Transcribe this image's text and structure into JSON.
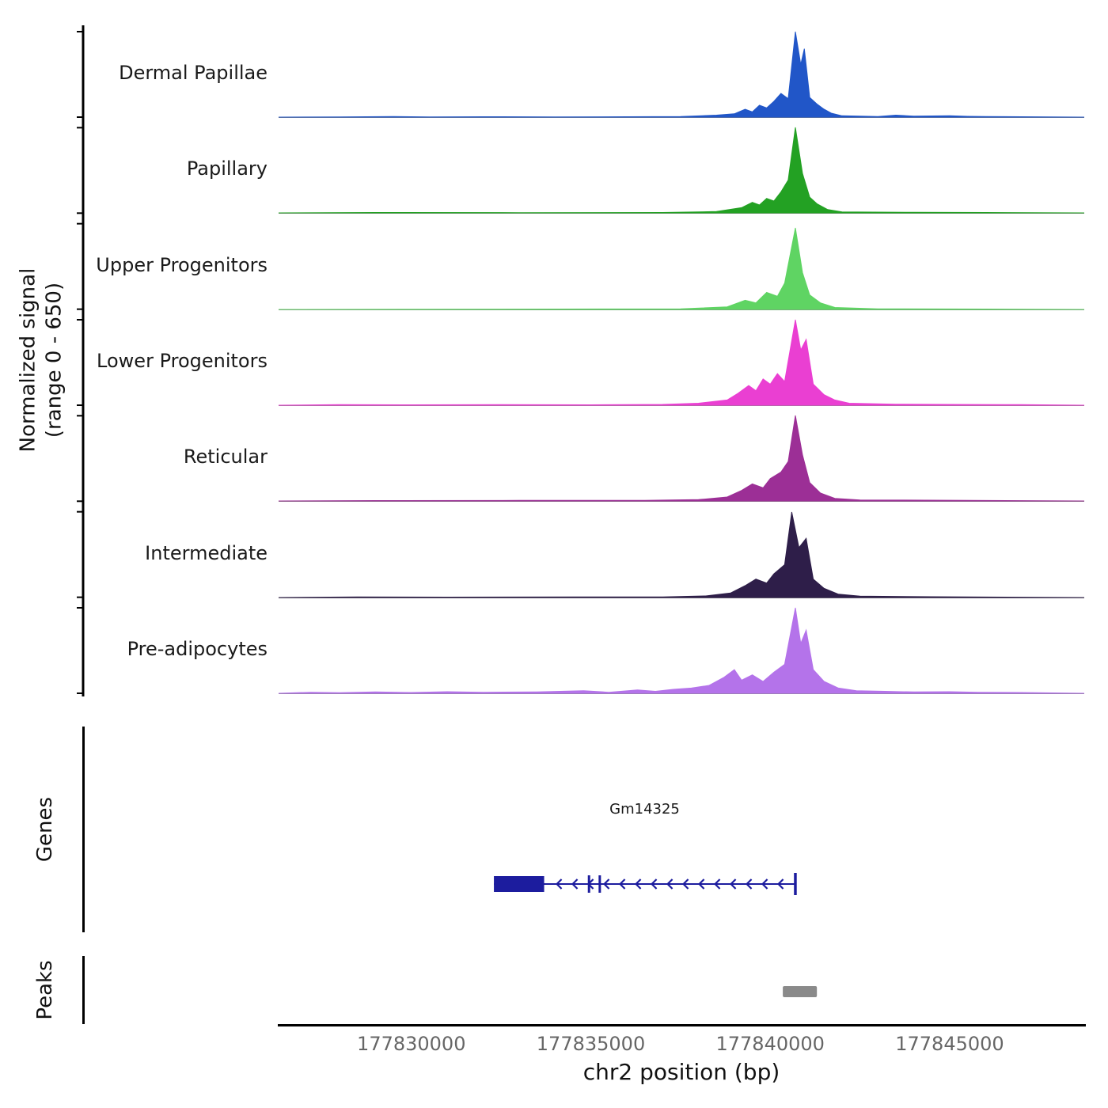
{
  "figure": {
    "ylabel_line1": "Normalized signal",
    "ylabel_line2": "(range 0 - 650)",
    "genes_section_label": "Genes",
    "peaks_section_label": "Peaks",
    "xlabel": "chr2 position (bp)"
  },
  "chart_data": {
    "type": "area",
    "subtype": "genome-browser-signal-tracks",
    "title": "",
    "xlabel": "chr2 position (bp)",
    "ylabel": "Normalized signal (range 0 - 650)",
    "x_domain": [
      177826300,
      177848750
    ],
    "y_domain": [
      0,
      650
    ],
    "x_ticks": [
      177830000,
      177835000,
      177840000,
      177845000
    ],
    "x_tick_labels": [
      "177830000",
      "177835000",
      "177840000",
      "177845000"
    ],
    "series": [
      {
        "name": "Dermal Papillae",
        "color": "#2156c8",
        "profile": [
          [
            177826300,
            0
          ],
          [
            177828000,
            2
          ],
          [
            177829500,
            4
          ],
          [
            177830500,
            2
          ],
          [
            177832000,
            3
          ],
          [
            177834000,
            2
          ],
          [
            177836000,
            3
          ],
          [
            177837500,
            5
          ],
          [
            177838500,
            15
          ],
          [
            177839000,
            25
          ],
          [
            177839300,
            60
          ],
          [
            177839500,
            40
          ],
          [
            177839700,
            90
          ],
          [
            177839900,
            70
          ],
          [
            177840100,
            120
          ],
          [
            177840300,
            180
          ],
          [
            177840500,
            140
          ],
          [
            177840700,
            650
          ],
          [
            177840850,
            400
          ],
          [
            177840950,
            520
          ],
          [
            177841100,
            150
          ],
          [
            177841300,
            100
          ],
          [
            177841500,
            60
          ],
          [
            177841700,
            30
          ],
          [
            177842000,
            10
          ],
          [
            177843000,
            5
          ],
          [
            177843500,
            15
          ],
          [
            177844000,
            8
          ],
          [
            177845000,
            10
          ],
          [
            177845500,
            6
          ],
          [
            177846000,
            4
          ],
          [
            177847000,
            3
          ],
          [
            177848750,
            0
          ]
        ]
      },
      {
        "name": "Papillary",
        "color": "#23a123",
        "profile": [
          [
            177826300,
            0
          ],
          [
            177829000,
            3
          ],
          [
            177833000,
            2
          ],
          [
            177837000,
            3
          ],
          [
            177838500,
            10
          ],
          [
            177839200,
            40
          ],
          [
            177839500,
            80
          ],
          [
            177839700,
            60
          ],
          [
            177839900,
            110
          ],
          [
            177840100,
            90
          ],
          [
            177840300,
            160
          ],
          [
            177840500,
            250
          ],
          [
            177840700,
            650
          ],
          [
            177840900,
            300
          ],
          [
            177841100,
            120
          ],
          [
            177841300,
            70
          ],
          [
            177841600,
            25
          ],
          [
            177842000,
            8
          ],
          [
            177844000,
            4
          ],
          [
            177846000,
            3
          ],
          [
            177848750,
            0
          ]
        ]
      },
      {
        "name": "Upper Progenitors",
        "color": "#5fd463",
        "profile": [
          [
            177826300,
            0
          ],
          [
            177830000,
            2
          ],
          [
            177834000,
            3
          ],
          [
            177837500,
            4
          ],
          [
            177838800,
            20
          ],
          [
            177839300,
            70
          ],
          [
            177839600,
            50
          ],
          [
            177839900,
            130
          ],
          [
            177840200,
            100
          ],
          [
            177840400,
            200
          ],
          [
            177840700,
            620
          ],
          [
            177840900,
            280
          ],
          [
            177841100,
            110
          ],
          [
            177841400,
            50
          ],
          [
            177841800,
            15
          ],
          [
            177843000,
            5
          ],
          [
            177846000,
            3
          ],
          [
            177848750,
            0
          ]
        ]
      },
      {
        "name": "Lower Progenitors",
        "color": "#ea3fd2",
        "profile": [
          [
            177826300,
            0
          ],
          [
            177828000,
            4
          ],
          [
            177830000,
            3
          ],
          [
            177832500,
            4
          ],
          [
            177835000,
            3
          ],
          [
            177837000,
            6
          ],
          [
            177838000,
            15
          ],
          [
            177838800,
            40
          ],
          [
            177839100,
            90
          ],
          [
            177839400,
            150
          ],
          [
            177839600,
            110
          ],
          [
            177839800,
            200
          ],
          [
            177840000,
            160
          ],
          [
            177840200,
            240
          ],
          [
            177840400,
            180
          ],
          [
            177840700,
            650
          ],
          [
            177840850,
            420
          ],
          [
            177841000,
            500
          ],
          [
            177841200,
            160
          ],
          [
            177841500,
            80
          ],
          [
            177841800,
            40
          ],
          [
            177842200,
            15
          ],
          [
            177843500,
            8
          ],
          [
            177845000,
            6
          ],
          [
            177847000,
            4
          ],
          [
            177848750,
            0
          ]
        ]
      },
      {
        "name": "Reticular",
        "color": "#9c2f96",
        "profile": [
          [
            177826300,
            0
          ],
          [
            177829000,
            3
          ],
          [
            177833000,
            4
          ],
          [
            177836500,
            5
          ],
          [
            177838000,
            10
          ],
          [
            177838800,
            30
          ],
          [
            177839200,
            80
          ],
          [
            177839500,
            130
          ],
          [
            177839800,
            100
          ],
          [
            177840000,
            170
          ],
          [
            177840300,
            220
          ],
          [
            177840500,
            300
          ],
          [
            177840700,
            650
          ],
          [
            177840900,
            350
          ],
          [
            177841100,
            140
          ],
          [
            177841400,
            60
          ],
          [
            177841800,
            20
          ],
          [
            177842500,
            8
          ],
          [
            177845500,
            5
          ],
          [
            177848750,
            0
          ]
        ]
      },
      {
        "name": "Intermediate",
        "color": "#2e1e49",
        "profile": [
          [
            177826300,
            0
          ],
          [
            177828500,
            4
          ],
          [
            177831000,
            3
          ],
          [
            177834500,
            4
          ],
          [
            177837000,
            5
          ],
          [
            177838200,
            12
          ],
          [
            177838900,
            35
          ],
          [
            177839300,
            90
          ],
          [
            177839600,
            140
          ],
          [
            177839900,
            110
          ],
          [
            177840100,
            180
          ],
          [
            177840400,
            250
          ],
          [
            177840600,
            650
          ],
          [
            177840800,
            380
          ],
          [
            177841000,
            450
          ],
          [
            177841200,
            140
          ],
          [
            177841500,
            70
          ],
          [
            177841900,
            25
          ],
          [
            177842500,
            10
          ],
          [
            177844500,
            6
          ],
          [
            177848750,
            0
          ]
        ]
      },
      {
        "name": "Pre-adipocytes",
        "color": "#b473ea",
        "profile": [
          [
            177826300,
            0
          ],
          [
            177827200,
            8
          ],
          [
            177828000,
            5
          ],
          [
            177829000,
            10
          ],
          [
            177830000,
            6
          ],
          [
            177831000,
            12
          ],
          [
            177832000,
            8
          ],
          [
            177833500,
            10
          ],
          [
            177834800,
            20
          ],
          [
            177835500,
            8
          ],
          [
            177836300,
            25
          ],
          [
            177836800,
            15
          ],
          [
            177837300,
            30
          ],
          [
            177837800,
            40
          ],
          [
            177838300,
            60
          ],
          [
            177838700,
            120
          ],
          [
            177839000,
            180
          ],
          [
            177839200,
            100
          ],
          [
            177839500,
            140
          ],
          [
            177839800,
            90
          ],
          [
            177840100,
            160
          ],
          [
            177840400,
            220
          ],
          [
            177840700,
            650
          ],
          [
            177840850,
            380
          ],
          [
            177841000,
            480
          ],
          [
            177841200,
            180
          ],
          [
            177841500,
            90
          ],
          [
            177841900,
            40
          ],
          [
            177842400,
            20
          ],
          [
            177843200,
            15
          ],
          [
            177844000,
            10
          ],
          [
            177845000,
            12
          ],
          [
            177845800,
            8
          ],
          [
            177847000,
            6
          ],
          [
            177848750,
            0
          ]
        ]
      }
    ],
    "gene_track": {
      "label": "Genes",
      "genes": [
        {
          "name": "Gm14325",
          "strand": "-",
          "start": 177832300,
          "end": 177840700,
          "exons": [
            [
              177832300,
              177833700
            ]
          ],
          "utr_marks": [
            177834950,
            177835250
          ],
          "tss_mark": 177840700,
          "color": "#1c1c9e"
        }
      ]
    },
    "peaks_track": {
      "label": "Peaks",
      "color": "#8a8a8a",
      "peaks": [
        [
          177840350,
          177841300
        ]
      ]
    }
  }
}
